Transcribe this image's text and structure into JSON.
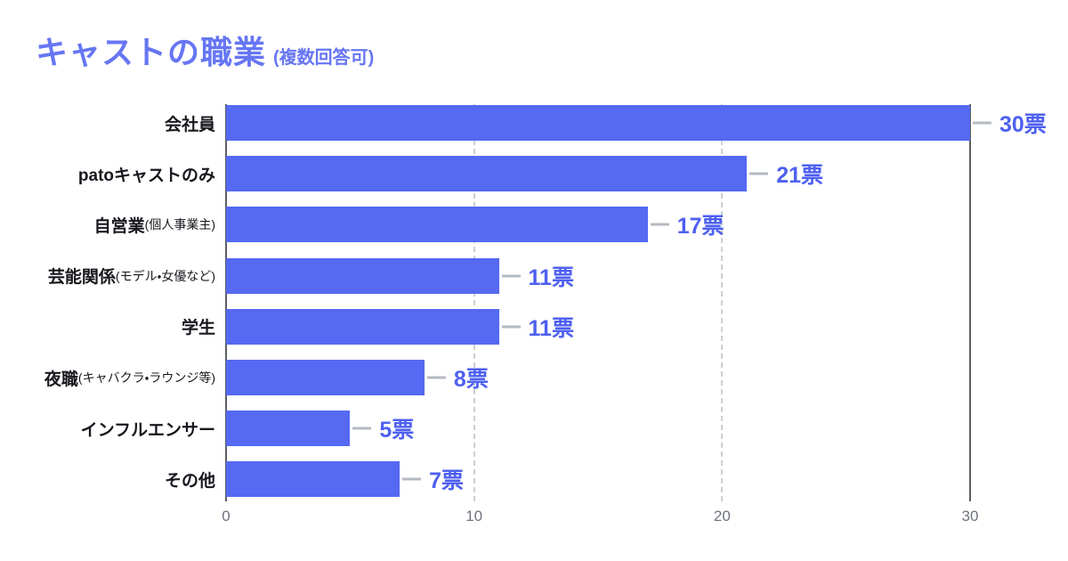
{
  "title": {
    "text": "キャストの職業",
    "note": "(複数回答可)"
  },
  "colors": {
    "title": "#6676F3",
    "bar": "#5569F2",
    "value_label": "#4E60F0",
    "category_label": "#16181D",
    "axis_line": "#5A6066",
    "gridline": "#CBCFD4",
    "leader_line": "#B4BAC1",
    "tick_label": "#6E747C",
    "background": "#FFFFFF"
  },
  "chart_data": {
    "type": "bar",
    "orientation": "horizontal",
    "title": "キャストの職業 (複数回答可)",
    "unit": "票",
    "categories": [
      {
        "main": "会社員",
        "sub": ""
      },
      {
        "main": "patoキャストのみ",
        "sub": ""
      },
      {
        "main": "自営業",
        "sub": "(個人事業主)"
      },
      {
        "main": "芸能関係",
        "sub": "(モデル・女優など)"
      },
      {
        "main": "学生",
        "sub": ""
      },
      {
        "main": "夜職",
        "sub": "(キャバクラ・ラウンジ等)"
      },
      {
        "main": "インフルエンサー",
        "sub": ""
      },
      {
        "main": "その他",
        "sub": ""
      }
    ],
    "values": [
      30,
      21,
      17,
      11,
      11,
      8,
      5,
      7
    ],
    "value_labels": [
      "30票",
      "21票",
      "17票",
      "11票",
      "11票",
      "8票",
      "5票",
      "7票"
    ],
    "xlim": [
      0,
      30
    ],
    "x_ticks": [
      {
        "value": 0,
        "label": "0",
        "style": "solid"
      },
      {
        "value": 10,
        "label": "10",
        "style": "dashed"
      },
      {
        "value": 20,
        "label": "20",
        "style": "dashed"
      },
      {
        "value": 30,
        "label": "30",
        "style": "solid"
      }
    ],
    "grid": "vertical dashed gridlines at 10 and 20, solid axis lines at 0 and 30",
    "legend_position": "none"
  }
}
